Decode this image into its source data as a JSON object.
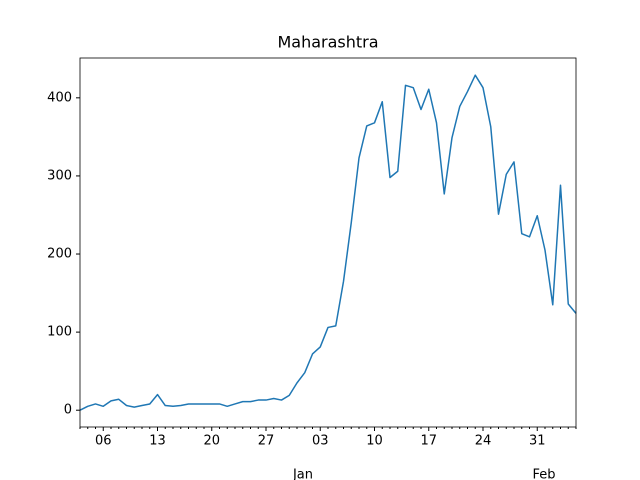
{
  "chart_data": {
    "type": "line",
    "title": "Maharashtra",
    "categories": [
      null,
      null,
      null,
      "06",
      null,
      null,
      null,
      null,
      null,
      null,
      "13",
      null,
      null,
      null,
      null,
      null,
      null,
      "20",
      null,
      null,
      null,
      null,
      null,
      null,
      "27",
      null,
      null,
      null,
      null,
      null,
      null,
      "03",
      null,
      null,
      null,
      null,
      null,
      null,
      "10",
      null,
      null,
      null,
      null,
      null,
      null,
      "17",
      null,
      null,
      null,
      null,
      null,
      null,
      "24",
      null,
      null,
      null,
      null,
      null,
      null,
      "31",
      null,
      null,
      null,
      null,
      null
    ],
    "month_labels": [
      "Jan",
      "Feb"
    ],
    "series": [
      {
        "color": "#1f77b4",
        "values": [
          0,
          5,
          8,
          5,
          12,
          14,
          6,
          4,
          6,
          8,
          20,
          6,
          5,
          6,
          8,
          8,
          8,
          8,
          8,
          5,
          8,
          11,
          11,
          13,
          13,
          15,
          13,
          19,
          35,
          48,
          72,
          81,
          106,
          108,
          165,
          240,
          323,
          364,
          368,
          395,
          298,
          306,
          416,
          413,
          385,
          411,
          368,
          277,
          349,
          389,
          408,
          429,
          413,
          363,
          251,
          302,
          318,
          226,
          222,
          249,
          205,
          135,
          288,
          136,
          124
        ]
      }
    ],
    "ylim": [
      -21.5,
      451
    ],
    "yticks": [
      0,
      100,
      200,
      300,
      400
    ]
  }
}
